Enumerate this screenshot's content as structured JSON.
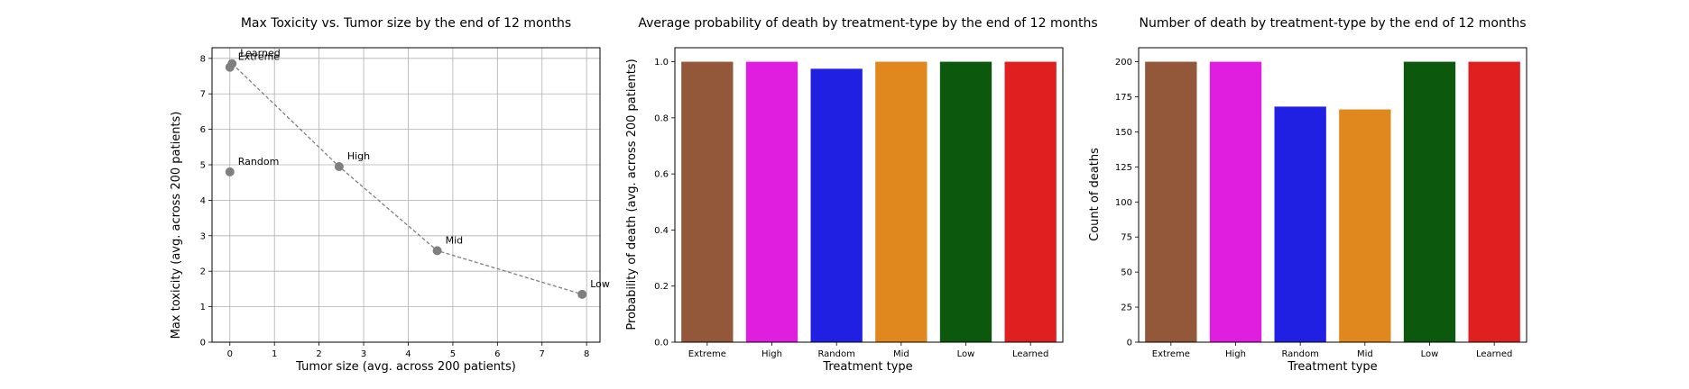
{
  "chart_data": [
    {
      "type": "scatter",
      "title": "Max Toxicity vs. Tumor size by the end of 12 months",
      "xlabel": "Tumor size (avg. across 200 patients)",
      "ylabel": "Max toxicity (avg. across 200 patients)",
      "xlim": [
        -0.4,
        8.3
      ],
      "ylim": [
        0,
        8.3
      ],
      "xticks": [
        0,
        1,
        2,
        3,
        4,
        5,
        6,
        7,
        8
      ],
      "yticks": [
        0,
        1,
        2,
        3,
        4,
        5,
        6,
        7,
        8
      ],
      "grid": true,
      "points": [
        {
          "label": "Extreme",
          "x": 0.0,
          "y": 7.75
        },
        {
          "label": "Learned",
          "x": 0.05,
          "y": 7.85
        },
        {
          "label": "Random",
          "x": 0.0,
          "y": 4.8
        },
        {
          "label": "High",
          "x": 2.45,
          "y": 4.95
        },
        {
          "label": "Mid",
          "x": 4.65,
          "y": 2.58
        },
        {
          "label": "Low",
          "x": 7.9,
          "y": 1.35
        }
      ],
      "trend_line": [
        "Learned",
        "High",
        "Mid",
        "Low"
      ],
      "marker_color": "#7f7f7f"
    },
    {
      "type": "bar",
      "title": "Average probability of death by treatment-type by the end of 12 months",
      "xlabel": "Treatment type",
      "ylabel": "Probability of death (avg. across 200 patients)",
      "categories": [
        "Extreme",
        "High",
        "Random",
        "Mid",
        "Low",
        "Learned"
      ],
      "values": [
        1.0,
        1.0,
        0.975,
        1.0,
        1.0,
        1.0
      ],
      "colors": [
        "#93573a",
        "#e01ee0",
        "#2020e3",
        "#e0881e",
        "#0c580c",
        "#e02020"
      ],
      "ylim": [
        0,
        1.05
      ],
      "yticks": [
        "0.0",
        "0.2",
        "0.4",
        "0.6",
        "0.8",
        "1.0"
      ],
      "grid": false
    },
    {
      "type": "bar",
      "title": "Number of death by treatment-type by the end of 12 months",
      "xlabel": "Treatment type",
      "ylabel": "Count of deaths",
      "categories": [
        "Extreme",
        "High",
        "Random",
        "Mid",
        "Low",
        "Learned"
      ],
      "values": [
        200,
        200,
        168,
        166,
        200,
        200
      ],
      "colors": [
        "#93573a",
        "#e01ee0",
        "#2020e3",
        "#e0881e",
        "#0c580c",
        "#e02020"
      ],
      "ylim": [
        0,
        210
      ],
      "yticks": [
        "0",
        "25",
        "50",
        "75",
        "100",
        "125",
        "150",
        "175",
        "200"
      ],
      "grid": false
    }
  ]
}
